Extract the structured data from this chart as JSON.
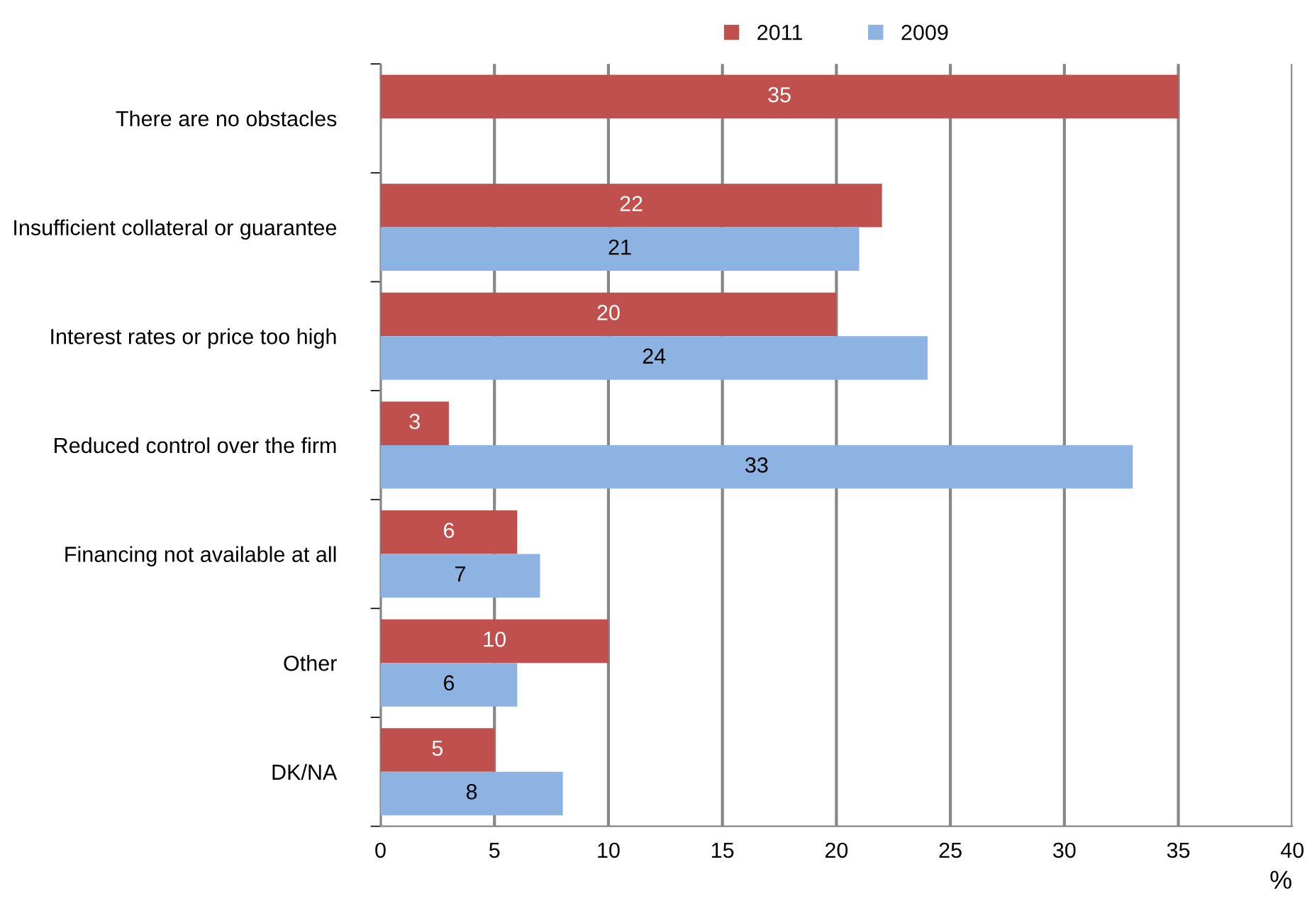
{
  "chart_data": {
    "type": "bar",
    "orientation": "horizontal",
    "xlabel": "%",
    "categories": [
      "There are no obstacles",
      "Insufficient collateral or guarantee",
      "Interest rates or price too high",
      "Reduced control over the firm",
      "Financing not available at all",
      "Other",
      "DK/NA"
    ],
    "series": [
      {
        "name": "2011",
        "color": "#c0504d",
        "values": [
          35,
          22,
          20,
          3,
          6,
          10,
          5
        ]
      },
      {
        "name": "2009",
        "color": "#8db3e2",
        "values": [
          null,
          21,
          24,
          33,
          7,
          6,
          8
        ]
      }
    ],
    "xlim": [
      0,
      40
    ],
    "xticks": [
      0,
      5,
      10,
      15,
      20,
      25,
      30,
      35,
      40
    ],
    "grid": "x",
    "legend": "top",
    "data_labels": true
  }
}
